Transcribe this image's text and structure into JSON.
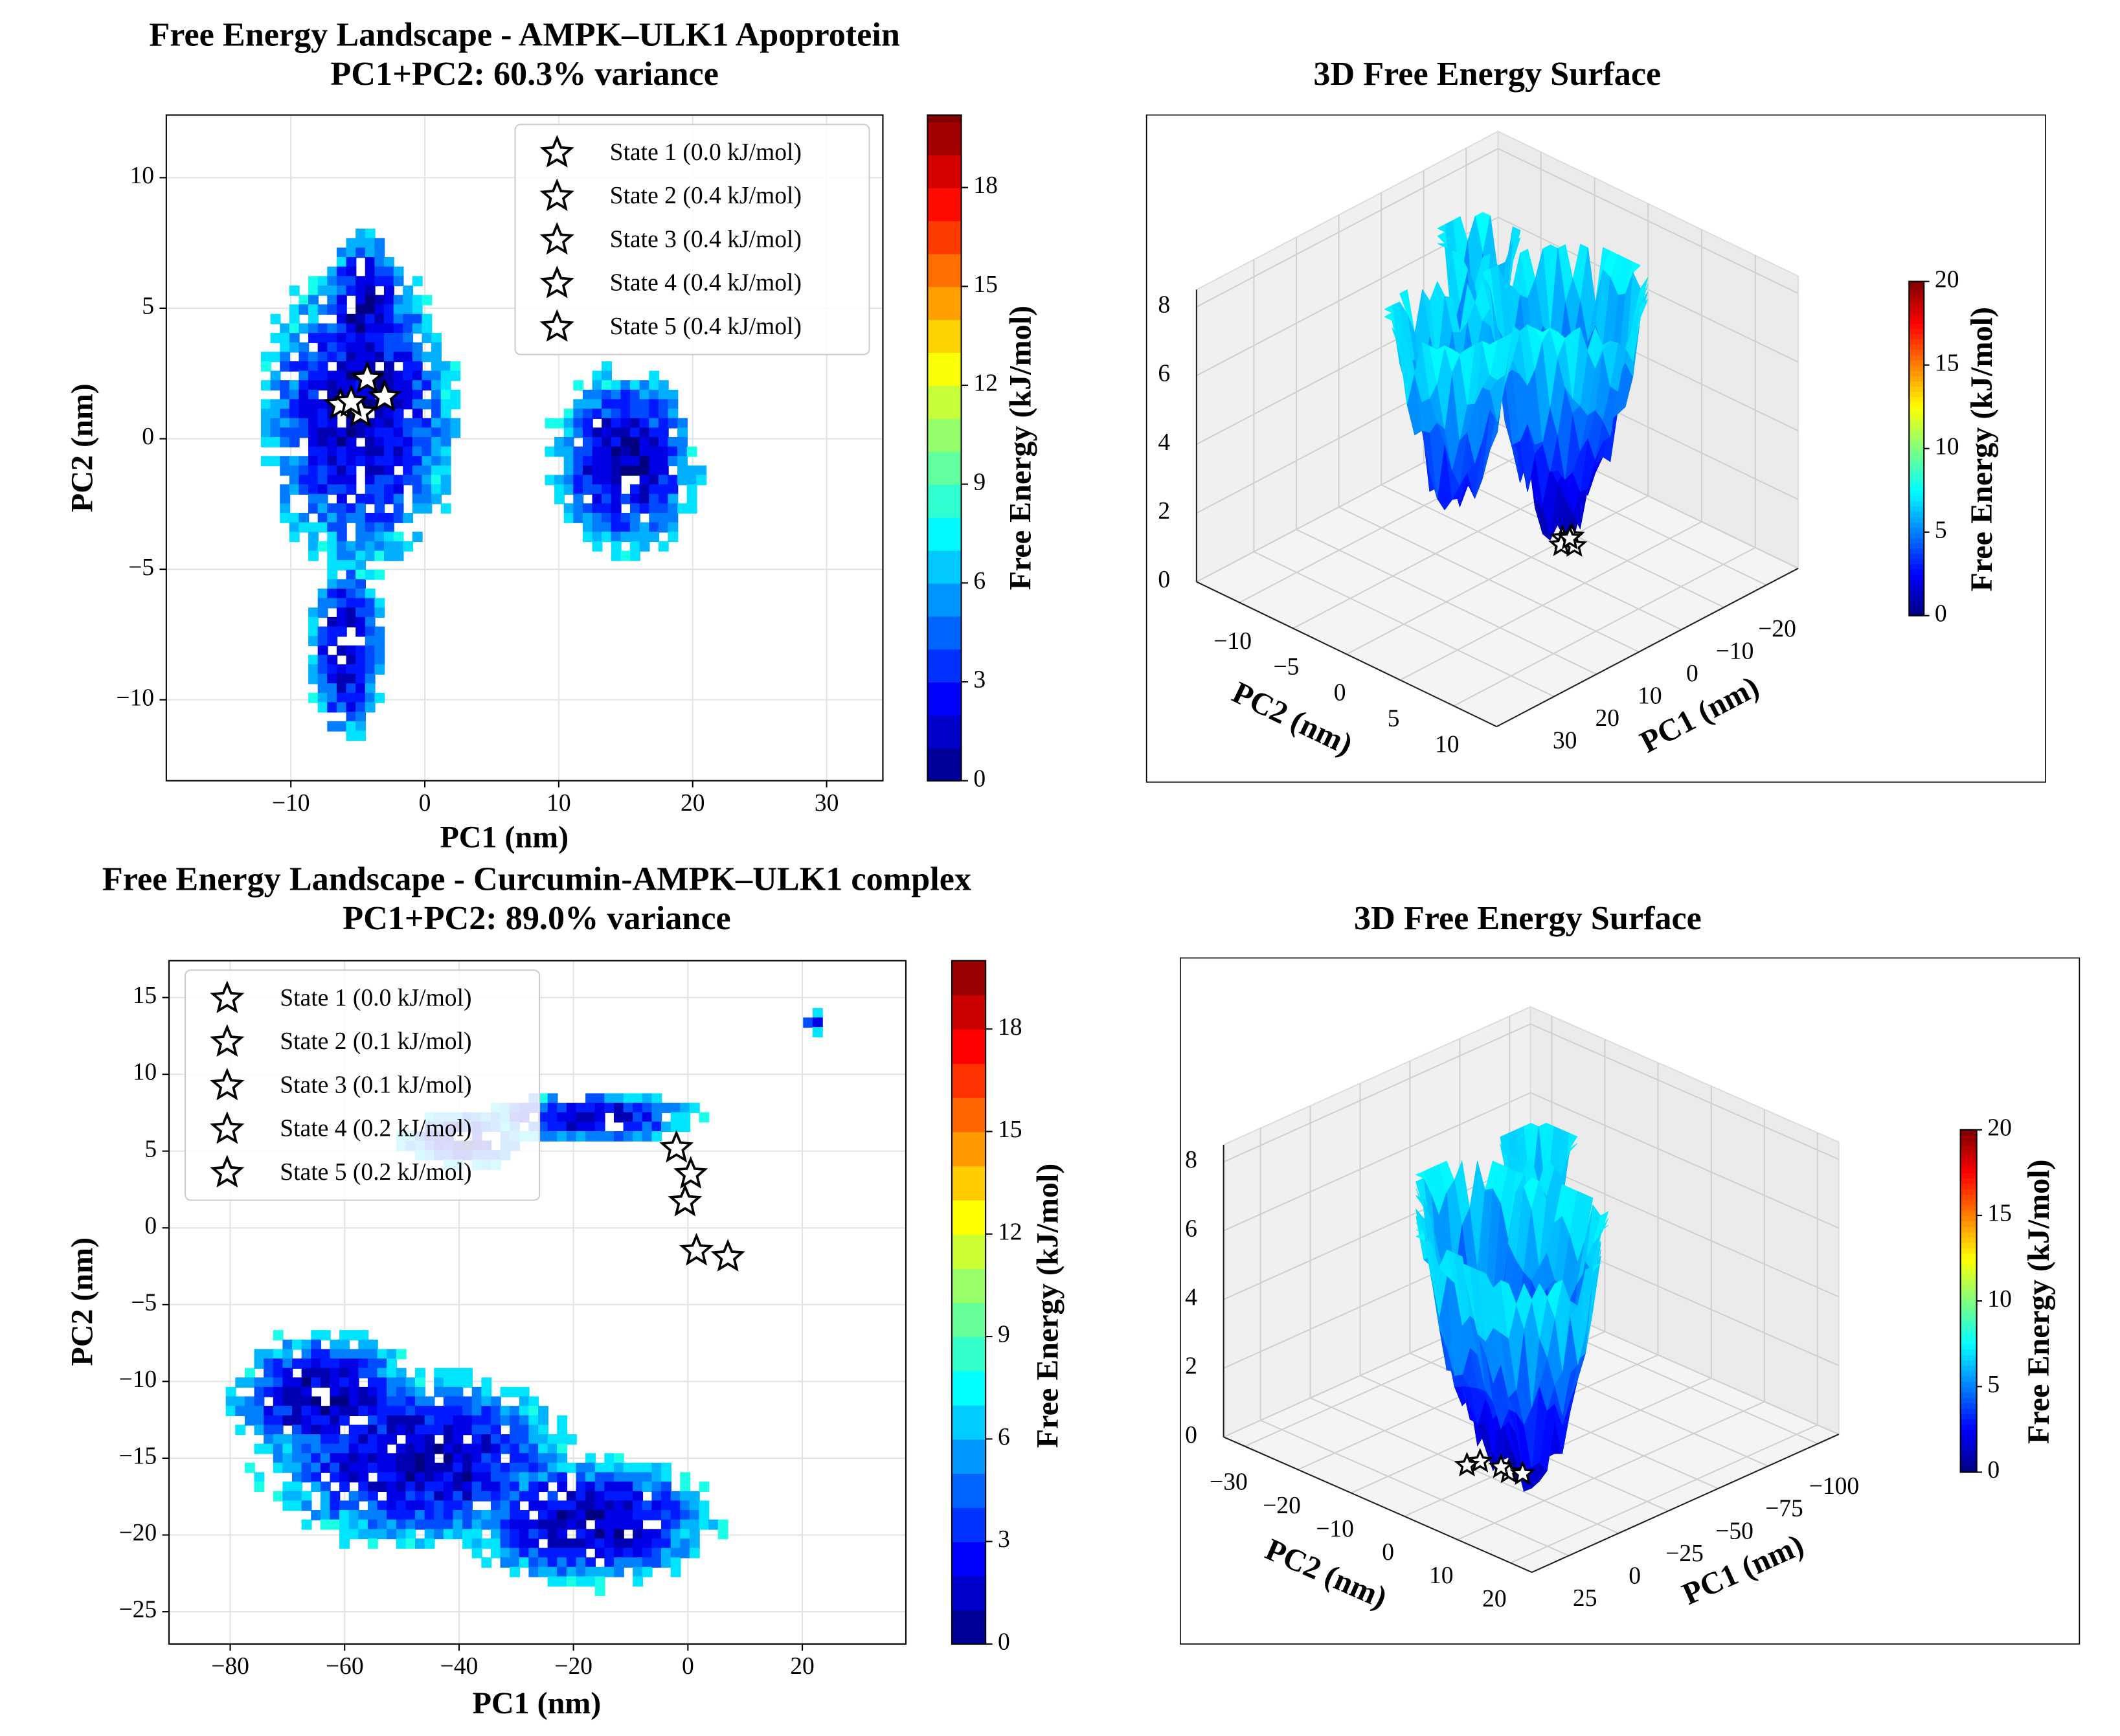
{
  "chart_data": [
    {
      "type": "contour",
      "title": "Free Energy Landscape - AMPK–ULK1 Apoprotein",
      "subtitle": "PC1+PC2: 60.3% variance",
      "xlabel": "PC1 (nm)",
      "ylabel": "PC2 (nm)",
      "xlim": [
        -19.3,
        34.2
      ],
      "ylim": [
        -13.1,
        12.4
      ],
      "xticks": [
        {
          "value": -10,
          "label": "−10"
        },
        0,
        10,
        20,
        30
      ],
      "yticks": [
        {
          "value": -10,
          "label": "−10"
        },
        {
          "value": -5,
          "label": "−5"
        },
        0,
        5,
        10
      ],
      "grid": true,
      "legend": "upper right",
      "series": [
        {
          "name": "State 1 (0.0 kJ/mol)",
          "color": "#ffffff",
          "x": [
            -4.8
          ],
          "y": [
            1.0
          ]
        },
        {
          "name": "State 2 (0.4 kJ/mol)",
          "color": "#ffffff",
          "x": [
            -6.3
          ],
          "y": [
            1.3
          ]
        },
        {
          "name": "State 3 (0.4 kJ/mol)",
          "color": "#ffffff",
          "x": [
            -4.3
          ],
          "y": [
            2.3
          ]
        },
        {
          "name": "State 4 (0.4 kJ/mol)",
          "color": "#ffffff",
          "x": [
            -3.0
          ],
          "y": [
            1.6
          ]
        },
        {
          "name": "State 5 (0.4 kJ/mol)",
          "color": "#ffffff",
          "x": [
            -5.5
          ],
          "y": [
            1.4
          ]
        }
      ],
      "colorbar": {
        "label": "Free Energy (kJ/mol)",
        "lim": [
          0,
          20.2
        ],
        "ticks": [
          0,
          3,
          6,
          9,
          12,
          15,
          18
        ]
      }
    },
    {
      "type": "surface3d",
      "title": "3D Free Energy Surface",
      "xlabel": "PC1 (nm)",
      "ylabel": "PC2 (nm)",
      "xlim": [
        -27.5,
        43.5
      ],
      "ylim": [
        -14,
        14
      ],
      "zlim": [
        0,
        8.5
      ],
      "xticks": [
        {
          "value": -20,
          "label": "−20"
        },
        {
          "value": -10,
          "label": "−10"
        },
        0,
        10,
        20,
        30
      ],
      "yticks": [
        {
          "value": -10,
          "label": "−10"
        },
        {
          "value": -5,
          "label": "−5"
        },
        0,
        5,
        10
      ],
      "zticks": [
        0,
        2,
        4,
        6,
        8
      ],
      "grid": true,
      "colorbar": {
        "label": "Free Energy (kJ/mol)",
        "lim": [
          0,
          20
        ],
        "ticks": [
          0,
          5,
          10,
          15,
          20
        ]
      }
    },
    {
      "type": "contour",
      "title": "Free Energy Landscape - Curcumin-AMPK–ULK1 complex",
      "subtitle": "PC1+PC2: 89.0% variance",
      "xlabel": "PC1 (nm)",
      "ylabel": "PC2 (nm)",
      "xlim": [
        -90.7,
        38.1
      ],
      "ylim": [
        -27.1,
        17.4
      ],
      "xticks": [
        {
          "value": -80,
          "label": "−80"
        },
        {
          "value": -60,
          "label": "−60"
        },
        {
          "value": -40,
          "label": "−40"
        },
        {
          "value": -20,
          "label": "−20"
        },
        0,
        20
      ],
      "yticks": [
        {
          "value": -25,
          "label": "−25"
        },
        {
          "value": -20,
          "label": "−20"
        },
        {
          "value": -15,
          "label": "−15"
        },
        {
          "value": -10,
          "label": "−10"
        },
        {
          "value": -5,
          "label": "−5"
        },
        0,
        5,
        10,
        15
      ],
      "grid": true,
      "legend": "upper left",
      "series": [
        {
          "name": "State 1 (0.0 kJ/mol)",
          "color": "#ffffff",
          "x": [
            0.5
          ],
          "y": [
            3.5
          ]
        },
        {
          "name": "State 2 (0.1 kJ/mol)",
          "color": "#ffffff",
          "x": [
            -0.5
          ],
          "y": [
            1.7
          ]
        },
        {
          "name": "State 3 (0.1 kJ/mol)",
          "color": "#ffffff",
          "x": [
            -2.0
          ],
          "y": [
            5.2
          ]
        },
        {
          "name": "State 4 (0.2 kJ/mol)",
          "color": "#ffffff",
          "x": [
            1.5
          ],
          "y": [
            -1.5
          ]
        },
        {
          "name": "State 5 (0.2 kJ/mol)",
          "color": "#ffffff",
          "x": [
            7.0
          ],
          "y": [
            -1.9
          ]
        }
      ],
      "colorbar": {
        "label": "Free Energy (kJ/mol)",
        "lim": [
          0,
          20.0
        ],
        "ticks": [
          0,
          3,
          6,
          9,
          12,
          15,
          18
        ]
      }
    },
    {
      "type": "surface3d",
      "title": "3D Free Energy Surface",
      "xlabel": "PC1 (nm)",
      "ylabel": "PC2 (nm)",
      "xlim": [
        -110.5,
        43.5
      ],
      "ylim": [
        -34,
        24
      ],
      "zlim": [
        0,
        8.5
      ],
      "xticks": [
        {
          "value": -100,
          "label": "−100"
        },
        {
          "value": -75,
          "label": "−75"
        },
        {
          "value": -50,
          "label": "−50"
        },
        {
          "value": -25,
          "label": "−25"
        },
        0,
        25
      ],
      "yticks": [
        {
          "value": -30,
          "label": "−30"
        },
        {
          "value": -20,
          "label": "−20"
        },
        {
          "value": -10,
          "label": "−10"
        },
        0,
        10,
        20
      ],
      "zticks": [
        0,
        2,
        4,
        6,
        8
      ],
      "grid": true,
      "colorbar": {
        "label": "Free Energy (kJ/mol)",
        "lim": [
          0,
          20
        ],
        "ticks": [
          0,
          5,
          10,
          15,
          20
        ]
      }
    }
  ]
}
